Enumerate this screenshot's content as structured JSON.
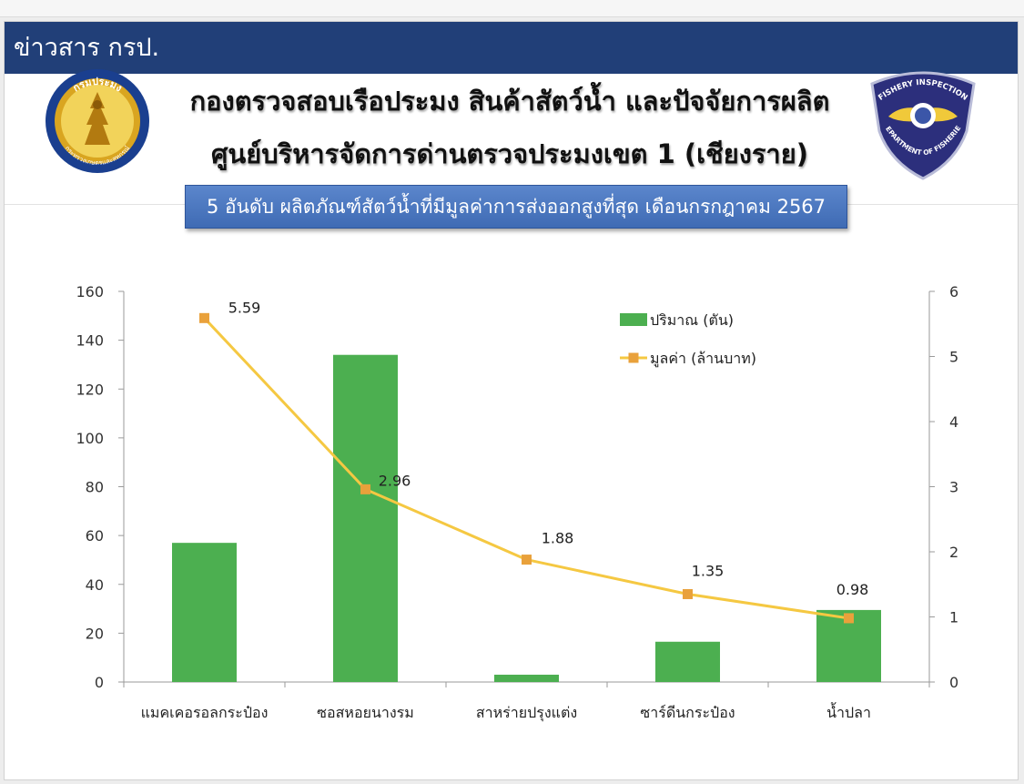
{
  "header": {
    "news_title": "ข่าวสาร กรป.",
    "title_line1": "กองตรวจสอบเรือประมง สินค้าสัตว์น้ำ และปัจจัยการผลิต",
    "title_line2": "ศูนย์บริหารจัดการด่านตรวจประมงเขต 1 (เชียงราย)"
  },
  "logos": {
    "left_text": "กรมประมง",
    "left_subtext": "กระทรวงเกษตรและสหกรณ์",
    "right_text_top": "FISHERY INSPECTION",
    "right_text_bottom": "DEPARTMENT OF FISHERIES"
  },
  "colors": {
    "header_bar": "#213f78",
    "banner": "#4a76bf",
    "bar": "#4caf50",
    "line": "#f5c842",
    "marker": "#e9a13b"
  },
  "chart_data": {
    "type": "bar",
    "title": "5 อันดับ ผลิตภัณฑ์สัตว์น้ำที่มีมูลค่าการส่งออกสูงที่สุด เดือนกรกฎาคม 2567",
    "categories": [
      "แมคเคอรอลกระป๋อง",
      "ซอสหอยนางรม",
      "สาหร่ายปรุงแต่ง",
      "ซาร์ดีนกระป๋อง",
      "น้ำปลา"
    ],
    "series": [
      {
        "name": "ปริมาณ (ตัน)",
        "type": "bar",
        "axis": "left",
        "values": [
          57,
          134,
          3,
          16.5,
          29.5
        ]
      },
      {
        "name": "มูลค่า (ล้านบาท)",
        "type": "line",
        "axis": "right",
        "values": [
          5.59,
          2.96,
          1.88,
          1.35,
          0.98
        ],
        "labels": [
          "5.59",
          "2.96",
          "1.88",
          "1.35",
          "0.98"
        ]
      }
    ],
    "y_left": {
      "min": 0,
      "max": 160,
      "ticks": [
        "0",
        "20",
        "40",
        "60",
        "80",
        "100",
        "120",
        "140",
        "160"
      ]
    },
    "y_right": {
      "min": 0,
      "max": 6,
      "ticks": [
        "0",
        "1",
        "2",
        "3",
        "4",
        "5",
        "6"
      ]
    },
    "grid": false,
    "legend_position": "top-right"
  }
}
